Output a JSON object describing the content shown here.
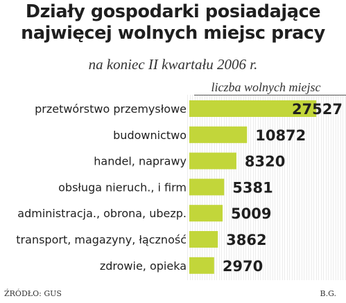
{
  "chart_data": {
    "type": "bar",
    "orientation": "horizontal",
    "title_lines": [
      "Działy gospodarki posiadające",
      "najwięcej wolnych miejsc pracy"
    ],
    "subtitle": "na koniec II kwartału 2006 r.",
    "xlabel": "liczba wolnych miejsc",
    "categories": [
      "przetwórstwo przemysłowe",
      "budownictwo",
      "handel, naprawy",
      "obsługa nieruch., i firm",
      "administracja., obrona, ubezp.",
      "transport, magazyny, łączność",
      "zdrowie, opieka"
    ],
    "values": [
      27527,
      10872,
      8320,
      5381,
      5009,
      3862,
      2970
    ],
    "value_labels": [
      "27527",
      "10872",
      "8320",
      "5381",
      "5009",
      "3862",
      "2970"
    ],
    "bar_color": "#c2d63a",
    "grid": false,
    "source": "ŹRÓDŁO: GUS",
    "author": "B.G."
  }
}
